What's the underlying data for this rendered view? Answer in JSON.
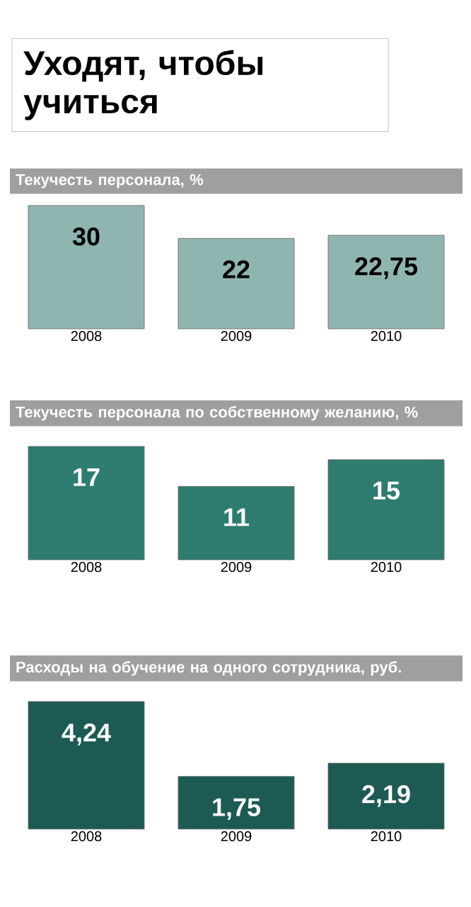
{
  "chart_data": [
    {
      "type": "bar",
      "title": "Уходят, чтобы учиться",
      "subtitle": "Текучесть персонала, %",
      "categories": [
        "2008",
        "2009",
        "2010"
      ],
      "values": [
        30,
        22,
        22.75
      ],
      "value_labels": [
        "30",
        "22",
        "22,75"
      ],
      "color": "#8fb5b0"
    },
    {
      "type": "bar",
      "title": "Текучесть персонала по собственному желанию, %",
      "categories": [
        "2008",
        "2009",
        "2010"
      ],
      "values": [
        17,
        11,
        15
      ],
      "value_labels": [
        "17",
        "11",
        "15"
      ],
      "color": "#2e7c70"
    },
    {
      "type": "bar",
      "title": "Расходы на обучение на одного сотрудника, руб.",
      "categories": [
        "2008",
        "2009",
        "2010"
      ],
      "values": [
        4.24,
        1.75,
        2.19
      ],
      "value_labels": [
        "4,24",
        "1,75",
        "2,19"
      ],
      "color": "#1d5a53"
    }
  ]
}
